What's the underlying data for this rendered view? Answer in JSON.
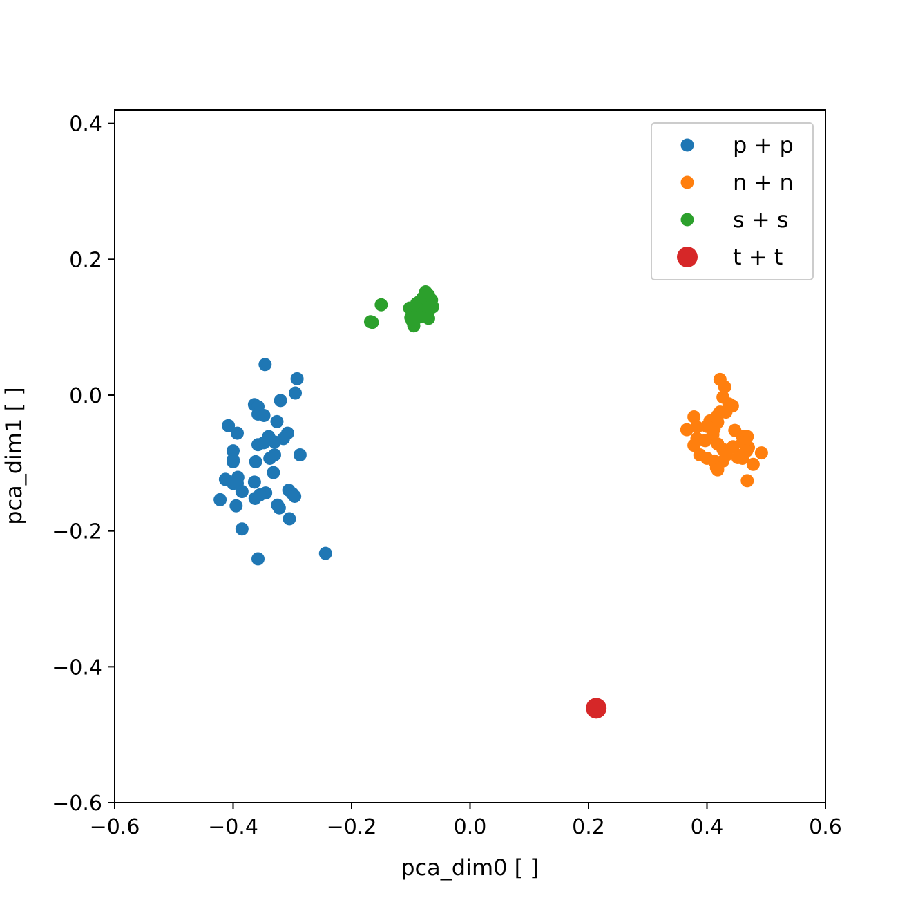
{
  "chart_data": {
    "type": "scatter",
    "title": "",
    "xlabel": "pca_dim0 [ ]",
    "ylabel": "pca_dim1 [ ]",
    "xlim": [
      -0.6,
      0.6
    ],
    "ylim": [
      -0.6,
      0.42
    ],
    "x_ticks": [
      -0.6,
      -0.4,
      -0.2,
      0.0,
      0.2,
      0.4,
      0.6
    ],
    "x_tick_labels": [
      "−0.6",
      "−0.4",
      "−0.2",
      "0.0",
      "0.2",
      "0.4",
      "0.6"
    ],
    "y_ticks": [
      -0.6,
      -0.4,
      -0.2,
      0.0,
      0.2,
      0.4
    ],
    "y_tick_labels": [
      "−0.6",
      "−0.4",
      "−0.2",
      "0.0",
      "0.2",
      "0.4"
    ],
    "grid": false,
    "legend": "top-right",
    "series": [
      {
        "name": "p + p",
        "color": "#1f77b4",
        "points": [
          [
            -0.346,
            0.045
          ],
          [
            -0.292,
            0.024
          ],
          [
            -0.295,
            0.003
          ],
          [
            -0.32,
            -0.008
          ],
          [
            -0.364,
            -0.014
          ],
          [
            -0.358,
            -0.017
          ],
          [
            -0.358,
            -0.028
          ],
          [
            -0.348,
            -0.03
          ],
          [
            -0.408,
            -0.045
          ],
          [
            -0.326,
            -0.039
          ],
          [
            -0.393,
            -0.056
          ],
          [
            -0.308,
            -0.056
          ],
          [
            -0.315,
            -0.064
          ],
          [
            -0.34,
            -0.061
          ],
          [
            -0.33,
            -0.069
          ],
          [
            -0.358,
            -0.073
          ],
          [
            -0.348,
            -0.07
          ],
          [
            -0.4,
            -0.082
          ],
          [
            -0.33,
            -0.088
          ],
          [
            -0.338,
            -0.093
          ],
          [
            -0.287,
            -0.088
          ],
          [
            -0.4,
            -0.095
          ],
          [
            -0.4,
            -0.098
          ],
          [
            -0.362,
            -0.098
          ],
          [
            -0.332,
            -0.114
          ],
          [
            -0.413,
            -0.124
          ],
          [
            -0.392,
            -0.121
          ],
          [
            -0.4,
            -0.13
          ],
          [
            -0.393,
            -0.13
          ],
          [
            -0.364,
            -0.128
          ],
          [
            -0.385,
            -0.142
          ],
          [
            -0.345,
            -0.144
          ],
          [
            -0.306,
            -0.14
          ],
          [
            -0.3,
            -0.145
          ],
          [
            -0.296,
            -0.149
          ],
          [
            -0.363,
            -0.152
          ],
          [
            -0.355,
            -0.147
          ],
          [
            -0.422,
            -0.154
          ],
          [
            -0.325,
            -0.162
          ],
          [
            -0.322,
            -0.166
          ],
          [
            -0.395,
            -0.163
          ],
          [
            -0.305,
            -0.182
          ],
          [
            -0.385,
            -0.197
          ],
          [
            -0.358,
            -0.241
          ],
          [
            -0.244,
            -0.233
          ]
        ]
      },
      {
        "name": "n + n",
        "color": "#ff7f0e",
        "points": [
          [
            0.422,
            0.023
          ],
          [
            0.43,
            0.012
          ],
          [
            0.427,
            -0.003
          ],
          [
            0.437,
            -0.013
          ],
          [
            0.443,
            -0.016
          ],
          [
            0.422,
            -0.025
          ],
          [
            0.432,
            -0.025
          ],
          [
            0.418,
            -0.03
          ],
          [
            0.378,
            -0.032
          ],
          [
            0.405,
            -0.038
          ],
          [
            0.418,
            -0.04
          ],
          [
            0.4,
            -0.046
          ],
          [
            0.412,
            -0.05
          ],
          [
            0.383,
            -0.047
          ],
          [
            0.366,
            -0.051
          ],
          [
            0.447,
            -0.052
          ],
          [
            0.41,
            -0.058
          ],
          [
            0.46,
            -0.061
          ],
          [
            0.468,
            -0.061
          ],
          [
            0.383,
            -0.064
          ],
          [
            0.397,
            -0.067
          ],
          [
            0.46,
            -0.07
          ],
          [
            0.418,
            -0.072
          ],
          [
            0.444,
            -0.076
          ],
          [
            0.378,
            -0.074
          ],
          [
            0.427,
            -0.08
          ],
          [
            0.47,
            -0.077
          ],
          [
            0.467,
            -0.082
          ],
          [
            0.388,
            -0.088
          ],
          [
            0.433,
            -0.088
          ],
          [
            0.492,
            -0.085
          ],
          [
            0.455,
            -0.089
          ],
          [
            0.46,
            -0.093
          ],
          [
            0.4,
            -0.093
          ],
          [
            0.412,
            -0.097
          ],
          [
            0.427,
            -0.097
          ],
          [
            0.452,
            -0.092
          ],
          [
            0.478,
            -0.102
          ],
          [
            0.416,
            -0.107
          ],
          [
            0.418,
            -0.11
          ],
          [
            0.468,
            -0.126
          ]
        ]
      },
      {
        "name": "s + s",
        "color": "#2ca02c",
        "points": [
          [
            -0.075,
            0.152
          ],
          [
            -0.07,
            0.147
          ],
          [
            -0.08,
            0.143
          ],
          [
            -0.065,
            0.14
          ],
          [
            -0.085,
            0.138
          ],
          [
            -0.075,
            0.137
          ],
          [
            -0.09,
            0.135
          ],
          [
            -0.07,
            0.133
          ],
          [
            -0.15,
            0.133
          ],
          [
            -0.08,
            0.13
          ],
          [
            -0.063,
            0.13
          ],
          [
            -0.102,
            0.128
          ],
          [
            -0.09,
            0.128
          ],
          [
            -0.075,
            0.127
          ],
          [
            -0.085,
            0.125
          ],
          [
            -0.07,
            0.124
          ],
          [
            -0.095,
            0.122
          ],
          [
            -0.08,
            0.12
          ],
          [
            -0.09,
            0.118
          ],
          [
            -0.072,
            0.116
          ],
          [
            -0.085,
            0.115
          ],
          [
            -0.1,
            0.114
          ],
          [
            -0.07,
            0.113
          ],
          [
            -0.098,
            0.11
          ],
          [
            -0.168,
            0.108
          ],
          [
            -0.165,
            0.107
          ],
          [
            -0.095,
            0.102
          ]
        ]
      },
      {
        "name": "t + t",
        "color": "#d62728",
        "marker_size": "large",
        "points": [
          [
            0.213,
            -0.461
          ]
        ]
      }
    ]
  }
}
